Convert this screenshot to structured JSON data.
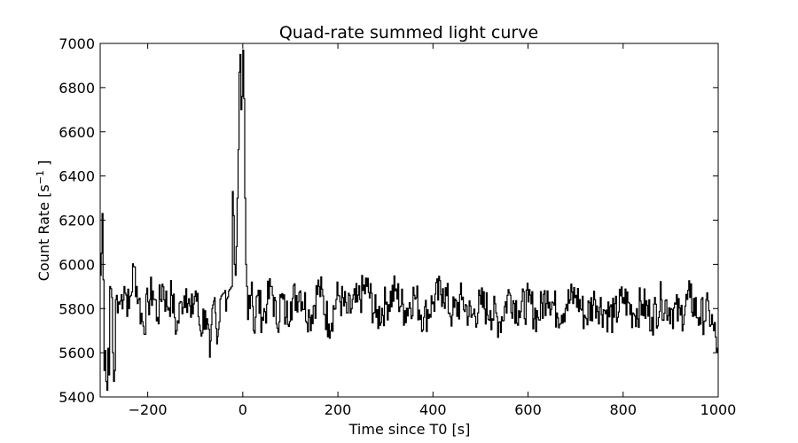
{
  "chart_data": {
    "type": "line",
    "title": "Quad-rate summed light curve",
    "xlabel": "Time since T0 [s]",
    "ylabel_main": "Count Rate [s",
    "ylabel_sup": "−1",
    "ylabel_end": " ]",
    "xlim": [
      -300,
      1000
    ],
    "ylim": [
      5400,
      7000
    ],
    "xticks": [
      -200,
      0,
      200,
      400,
      600,
      800,
      1000
    ],
    "xtick_labels": [
      "−200",
      "0",
      "200",
      "400",
      "600",
      "800",
      "1000"
    ],
    "yticks": [
      5400,
      5600,
      5800,
      6000,
      6200,
      6400,
      6600,
      6800,
      7000
    ],
    "ytick_labels": [
      "5400",
      "5600",
      "5800",
      "6000",
      "6200",
      "6400",
      "6600",
      "6800",
      "7000"
    ],
    "grid": false,
    "drawstyle": "steps",
    "line_color": "#000000",
    "series": [
      {
        "bin_width": 2,
        "x": [
          -300,
          -298,
          -296,
          -294,
          -292,
          -290,
          -288,
          -286,
          -284,
          -282,
          -280,
          -278,
          -276,
          -274,
          -272,
          -270,
          -268,
          -266,
          -264,
          -262,
          -260,
          -250,
          -240,
          -230,
          -220,
          -210,
          -200,
          -190,
          -180,
          -170,
          -160,
          -150,
          -140,
          -130,
          -120,
          -110,
          -100,
          -90,
          -80,
          -70,
          -65,
          -60,
          -55,
          -50,
          -40,
          -30,
          -24,
          -22,
          -20,
          -18,
          -16,
          -14,
          -12,
          -10,
          -8,
          -6,
          -4,
          -2,
          0,
          2,
          4,
          6,
          8,
          10,
          12,
          14,
          18,
          22,
          30,
          40,
          50,
          60,
          70,
          80,
          90,
          100,
          120,
          140,
          160,
          180,
          200,
          220,
          240,
          260,
          280,
          300,
          320,
          340,
          360,
          380,
          400,
          420,
          440,
          460,
          480,
          500,
          520,
          540,
          560,
          580,
          600,
          620,
          640,
          660,
          680,
          700,
          720,
          740,
          760,
          780,
          800,
          820,
          840,
          860,
          880,
          900,
          920,
          940,
          960,
          980,
          990,
          998
        ],
        "y": [
          5950,
          6050,
          6230,
          5930,
          5520,
          5610,
          5470,
          5430,
          5620,
          5500,
          5900,
          5890,
          5850,
          5600,
          5470,
          5520,
          5840,
          5860,
          5780,
          5830,
          5820,
          5900,
          5800,
          5990,
          5840,
          5720,
          5830,
          5880,
          5760,
          5910,
          5810,
          5860,
          5700,
          5830,
          5890,
          5760,
          5880,
          5700,
          5790,
          5580,
          5800,
          5850,
          5640,
          5740,
          5870,
          5880,
          5900,
          6330,
          6220,
          6000,
          5950,
          6080,
          6300,
          6520,
          6870,
          6950,
          6700,
          6760,
          6970,
          6750,
          6300,
          6000,
          5900,
          5750,
          5860,
          5800,
          5920,
          5700,
          5860,
          5760,
          5820,
          5900,
          5730,
          5850,
          5760,
          5830,
          5880,
          5760,
          5900,
          5730,
          5860,
          5780,
          5830,
          5900,
          5760,
          5820,
          5880,
          5790,
          5860,
          5760,
          5830,
          5890,
          5770,
          5840,
          5760,
          5820,
          5790,
          5740,
          5870,
          5790,
          5830,
          5760,
          5880,
          5780,
          5820,
          5860,
          5760,
          5840,
          5790,
          5760,
          5850,
          5780,
          5820,
          5760,
          5840,
          5800,
          5770,
          5850,
          5760,
          5790,
          5700,
          5620
        ]
      }
    ]
  }
}
